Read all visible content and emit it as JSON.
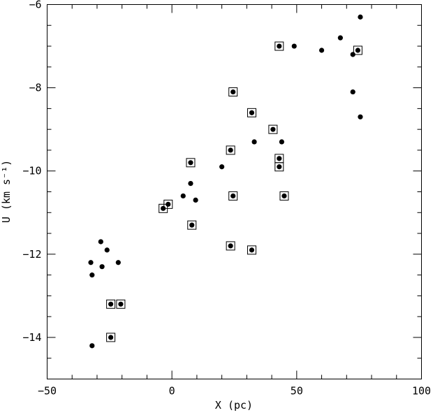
{
  "chart_data": {
    "type": "scatter",
    "xlabel": "X (pc)",
    "ylabel": "U (km s⁻¹)",
    "xlim": [
      -50,
      100
    ],
    "ylim": [
      -15,
      -6
    ],
    "x_ticks": [
      -50,
      0,
      50,
      100
    ],
    "y_ticks": [
      -14,
      -12,
      -10,
      -8,
      -6
    ],
    "x_tick_labels": [
      "−50",
      "0",
      "50",
      "100"
    ],
    "y_tick_labels": [
      "−14",
      "−12",
      "−10",
      "−8",
      "−6"
    ],
    "grid": false,
    "legend": "none",
    "points": [
      {
        "x": -32.5,
        "y": -12.2,
        "boxed": false
      },
      {
        "x": -32.0,
        "y": -12.5,
        "boxed": false
      },
      {
        "x": -28.5,
        "y": -11.7,
        "boxed": false
      },
      {
        "x": -28.0,
        "y": -12.3,
        "boxed": false
      },
      {
        "x": -26.0,
        "y": -11.9,
        "boxed": false
      },
      {
        "x": -21.5,
        "y": -12.2,
        "boxed": false
      },
      {
        "x": -32.0,
        "y": -14.2,
        "boxed": false
      },
      {
        "x": -24.5,
        "y": -13.2,
        "boxed": true
      },
      {
        "x": -20.5,
        "y": -13.2,
        "boxed": true
      },
      {
        "x": -24.5,
        "y": -14.0,
        "boxed": true
      },
      {
        "x": -3.5,
        "y": -10.9,
        "boxed": true
      },
      {
        "x": -1.5,
        "y": -10.8,
        "boxed": true
      },
      {
        "x": 4.5,
        "y": -10.6,
        "boxed": false
      },
      {
        "x": 7.5,
        "y": -9.8,
        "boxed": true
      },
      {
        "x": 7.5,
        "y": -10.3,
        "boxed": false
      },
      {
        "x": 9.5,
        "y": -10.7,
        "boxed": false
      },
      {
        "x": 8.0,
        "y": -11.3,
        "boxed": true
      },
      {
        "x": 20.0,
        "y": -9.9,
        "boxed": false
      },
      {
        "x": 23.5,
        "y": -9.5,
        "boxed": true
      },
      {
        "x": 23.5,
        "y": -11.8,
        "boxed": true
      },
      {
        "x": 24.5,
        "y": -8.1,
        "boxed": true
      },
      {
        "x": 24.5,
        "y": -10.6,
        "boxed": true
      },
      {
        "x": 32.0,
        "y": -8.6,
        "boxed": true
      },
      {
        "x": 33.0,
        "y": -9.3,
        "boxed": false
      },
      {
        "x": 32.0,
        "y": -11.9,
        "boxed": true
      },
      {
        "x": 40.5,
        "y": -9.0,
        "boxed": true
      },
      {
        "x": 43.0,
        "y": -7.0,
        "boxed": true
      },
      {
        "x": 43.0,
        "y": -9.7,
        "boxed": true
      },
      {
        "x": 43.0,
        "y": -9.9,
        "boxed": true
      },
      {
        "x": 44.0,
        "y": -9.3,
        "boxed": false
      },
      {
        "x": 45.0,
        "y": -10.6,
        "boxed": true
      },
      {
        "x": 49.0,
        "y": -7.0,
        "boxed": false
      },
      {
        "x": 60.0,
        "y": -7.1,
        "boxed": false
      },
      {
        "x": 67.5,
        "y": -6.8,
        "boxed": false
      },
      {
        "x": 72.5,
        "y": -7.2,
        "boxed": false
      },
      {
        "x": 72.5,
        "y": -8.1,
        "boxed": false
      },
      {
        "x": 74.5,
        "y": -7.1,
        "boxed": true
      },
      {
        "x": 75.5,
        "y": -6.3,
        "boxed": false
      },
      {
        "x": 75.5,
        "y": -8.7,
        "boxed": false
      }
    ]
  }
}
